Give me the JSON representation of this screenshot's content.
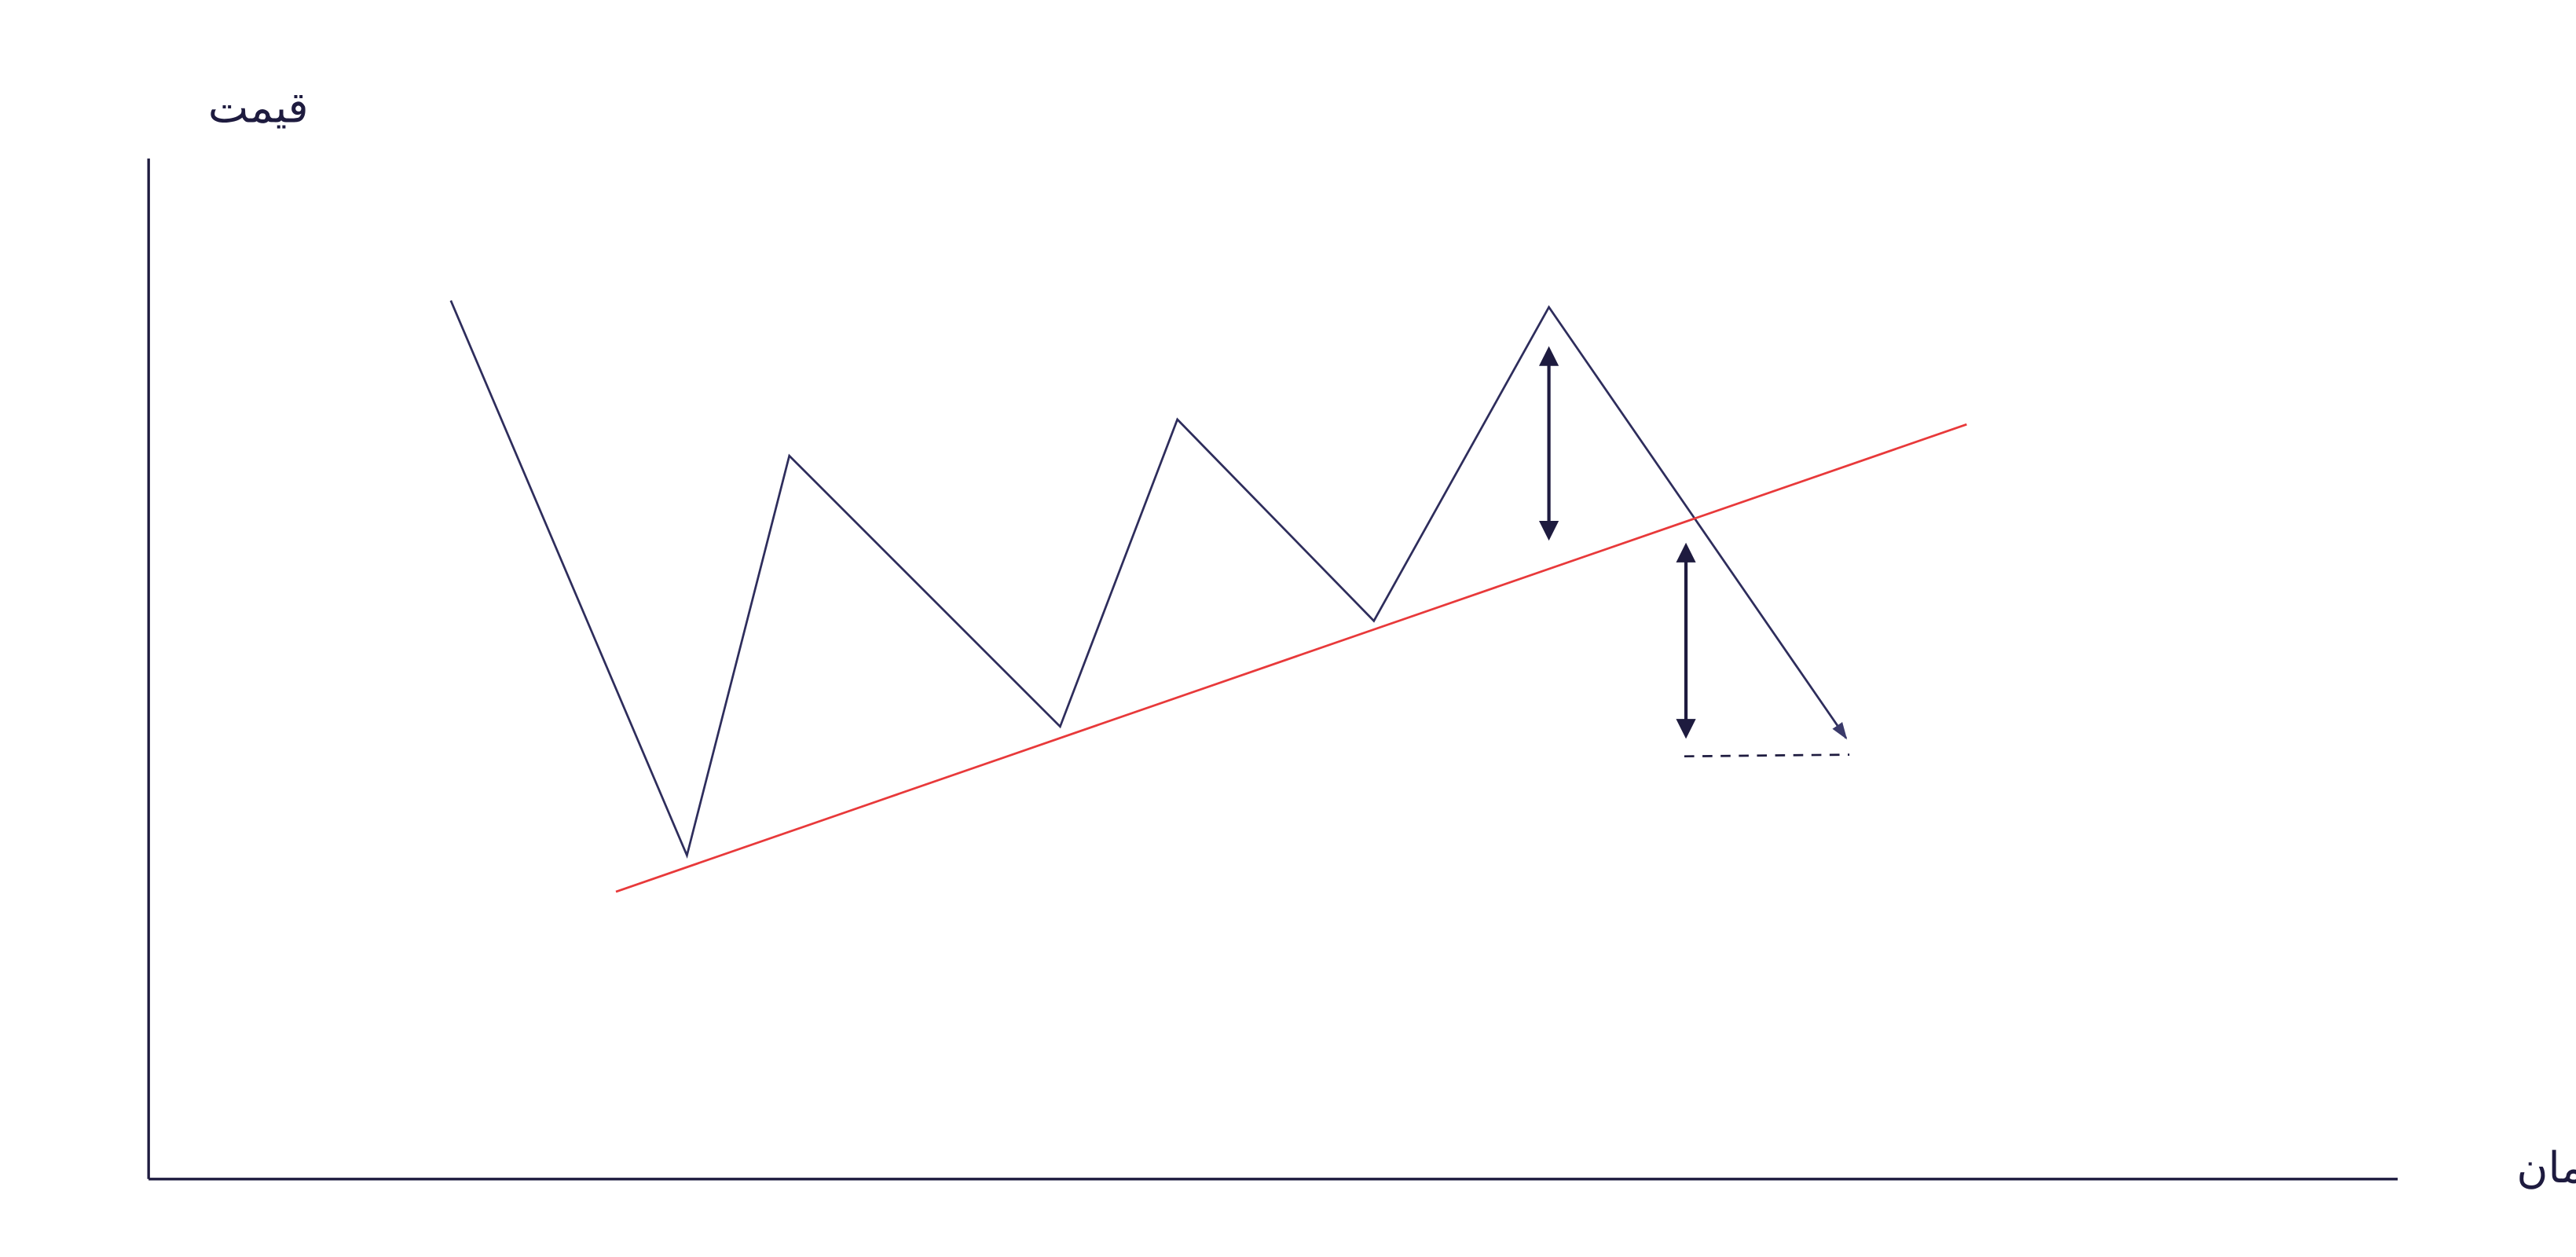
{
  "axes": {
    "y_label": "قیمت",
    "x_label": "زمان"
  }
}
